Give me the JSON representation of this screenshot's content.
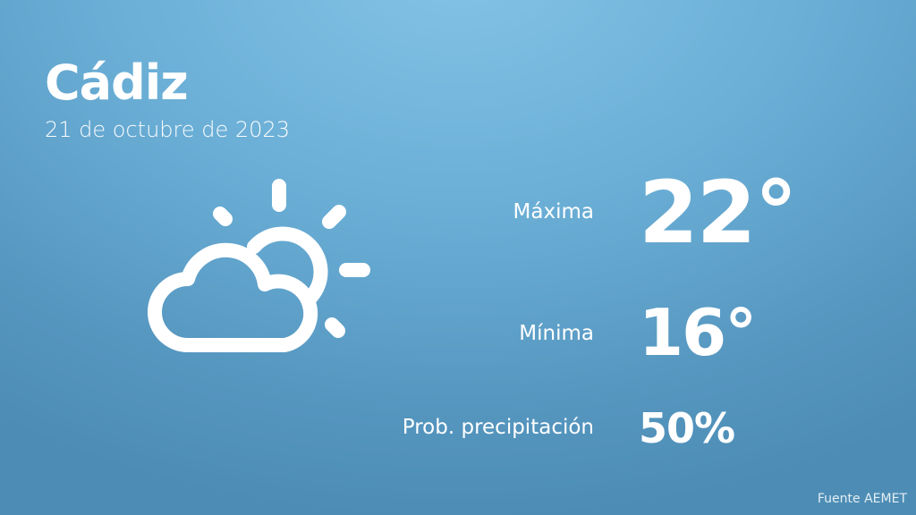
{
  "location": {
    "city": "Cádiz",
    "date": "21 de octubre de 2023"
  },
  "weather": {
    "icon": "partly-cloudy-icon",
    "max": {
      "label": "Máxima",
      "value": "22°"
    },
    "min": {
      "label": "Mínima",
      "value": "16°"
    },
    "precip": {
      "label": "Prob. precipitación",
      "value": "50%"
    }
  },
  "source": "Fuente AEMET"
}
